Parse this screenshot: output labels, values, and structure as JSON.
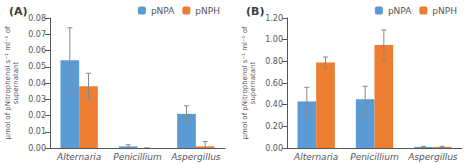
{
  "chart_data": [
    {
      "type": "bar",
      "title": "(A)",
      "ylabel": "μmol of pNitrophenol s⁻¹ ml⁻¹ of\nsupernatant",
      "categories": [
        "Alternaria",
        "Penicillium",
        "Aspergillus"
      ],
      "series": [
        {
          "name": "pNPA",
          "color": "#5B9BD5",
          "values": [
            0.054,
            0.001,
            0.021
          ],
          "errors": [
            0.02,
            0.001,
            0.005
          ]
        },
        {
          "name": "pNPH",
          "color": "#ED7D31",
          "values": [
            0.038,
            0.0,
            0.001
          ],
          "errors": [
            0.008,
            0.0,
            0.003
          ]
        }
      ],
      "ylim": [
        0,
        0.08
      ],
      "yticks": [
        {
          "value": 0,
          "label": "0.00"
        },
        0.01,
        0.02,
        0.03,
        0.04,
        0.05,
        0.06,
        0.07,
        0.08
      ],
      "grid": false,
      "legend": "upper right"
    },
    {
      "type": "bar",
      "title": "(B)",
      "ylabel": "μmol of pNitrophenol s⁻¹ ml⁻¹ of\nsupernatant",
      "categories": [
        "Alternaria",
        "Penicillium",
        "Aspergillus"
      ],
      "series": [
        {
          "name": "pNPA",
          "color": "#5B9BD5",
          "values": [
            0.43,
            0.45,
            0.01
          ],
          "errors": [
            0.13,
            0.12,
            0.005
          ]
        },
        {
          "name": "pNPH",
          "color": "#ED7D31",
          "values": [
            0.79,
            0.95,
            0.01
          ],
          "errors": [
            0.05,
            0.14,
            0.005
          ]
        }
      ],
      "ylim": [
        0,
        1.2
      ],
      "yticks": [
        {
          "value": 0,
          "label": "0.00"
        },
        {
          "value": 0.2,
          "label": "0.20"
        },
        {
          "value": 0.4,
          "label": "0.40"
        },
        {
          "value": 0.6,
          "label": "0.60"
        },
        {
          "value": 0.8,
          "label": "0.80"
        },
        {
          "value": 1,
          "label": "1.00"
        },
        {
          "value": 1.2,
          "label": "1.20"
        }
      ],
      "grid": false,
      "legend": "upper right"
    }
  ]
}
